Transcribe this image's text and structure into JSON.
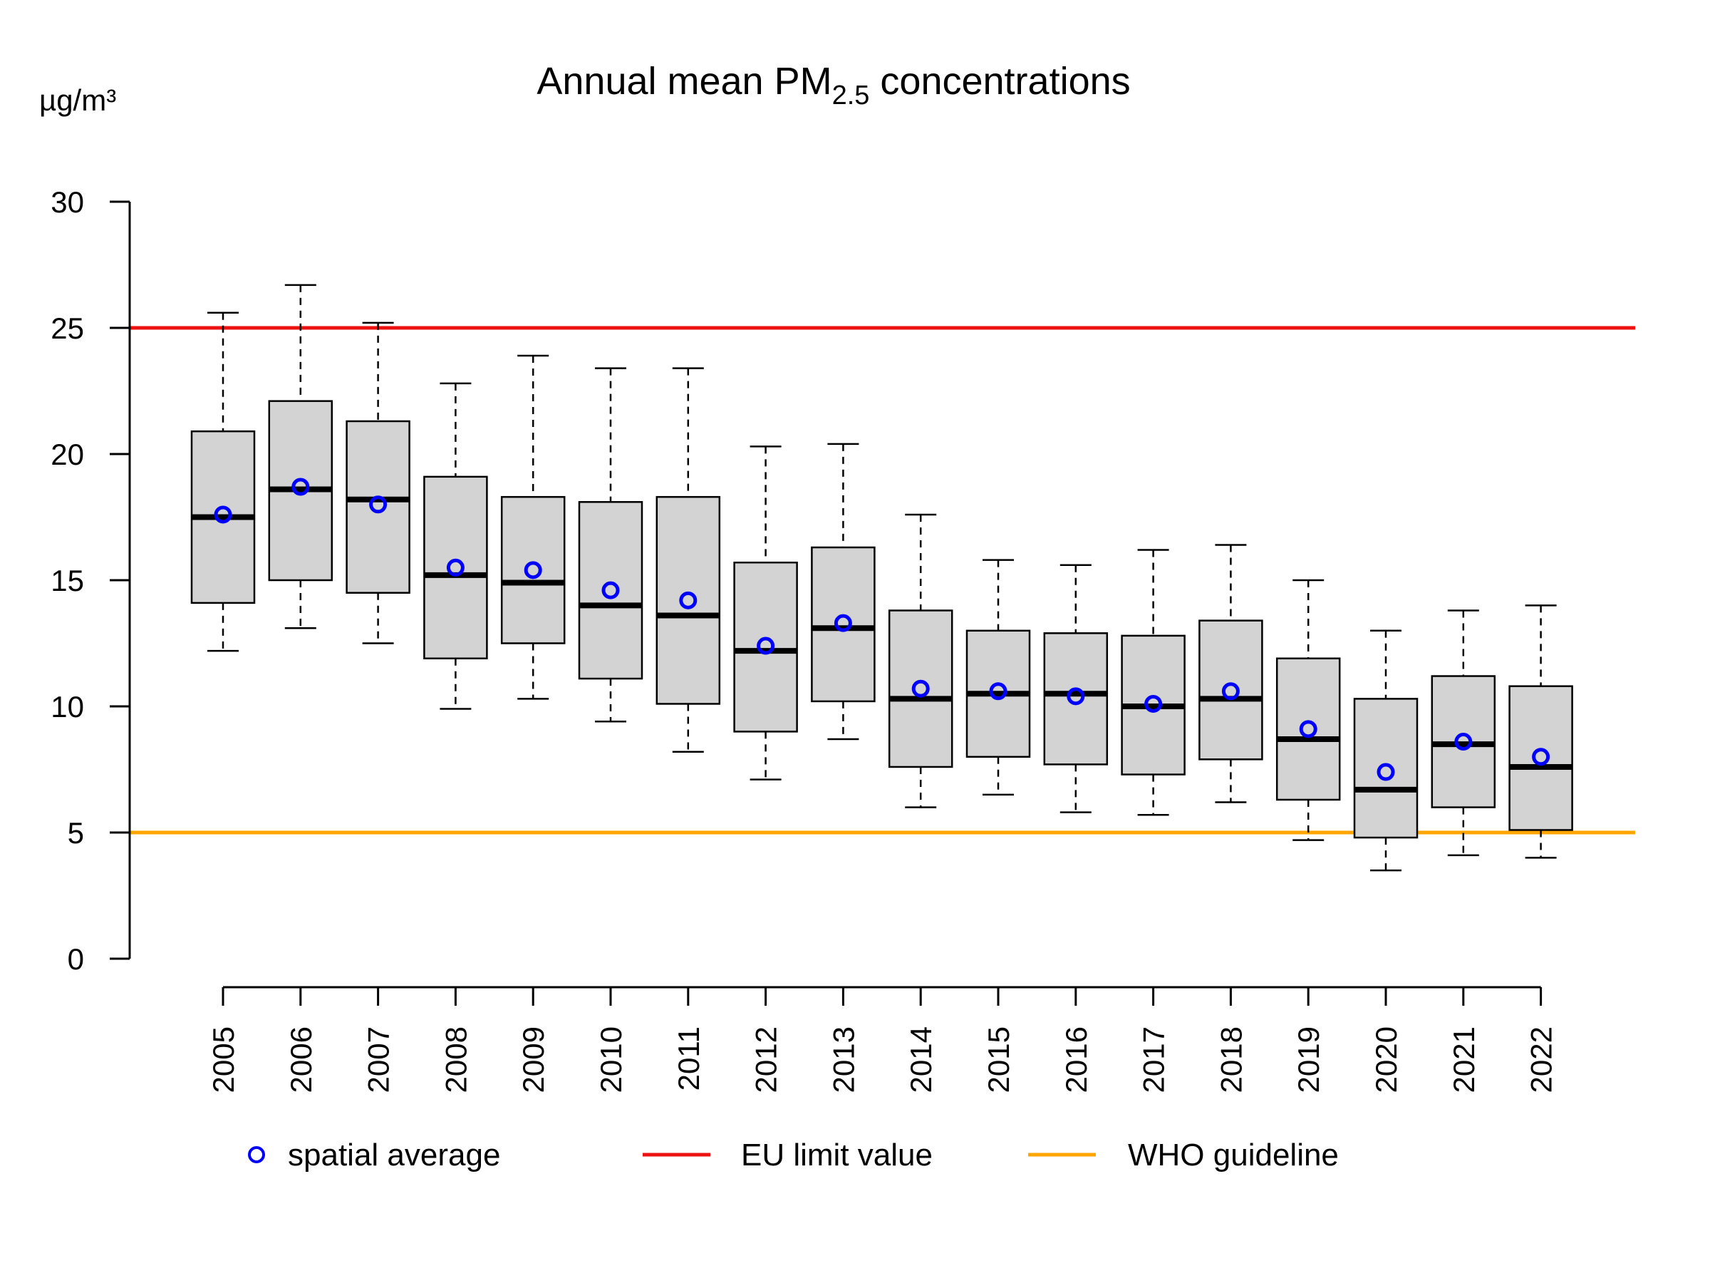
{
  "chart_data": {
    "type": "box",
    "title_main": "Annual mean PM",
    "title_sub": "2.5",
    "title_rest": " concentrations",
    "unit_label": "µg/m³",
    "ylim": [
      0,
      30
    ],
    "yticks": [
      0,
      5,
      10,
      15,
      20,
      25,
      30
    ],
    "categories": [
      "2005",
      "2006",
      "2007",
      "2008",
      "2009",
      "2010",
      "2011",
      "2012",
      "2013",
      "2014",
      "2015",
      "2016",
      "2017",
      "2018",
      "2019",
      "2020",
      "2021",
      "2022"
    ],
    "boxes": [
      {
        "lo": 12.2,
        "q1": 14.1,
        "median": 17.5,
        "q3": 20.9,
        "hi": 25.6,
        "mean": 17.6
      },
      {
        "lo": 13.1,
        "q1": 15.0,
        "median": 18.6,
        "q3": 22.1,
        "hi": 26.7,
        "mean": 18.7
      },
      {
        "lo": 12.5,
        "q1": 14.5,
        "median": 18.2,
        "q3": 21.3,
        "hi": 25.2,
        "mean": 18.0
      },
      {
        "lo": 9.9,
        "q1": 11.9,
        "median": 15.2,
        "q3": 19.1,
        "hi": 22.8,
        "mean": 15.5
      },
      {
        "lo": 10.3,
        "q1": 12.5,
        "median": 14.9,
        "q3": 18.3,
        "hi": 23.9,
        "mean": 15.4
      },
      {
        "lo": 9.4,
        "q1": 11.1,
        "median": 14.0,
        "q3": 18.1,
        "hi": 23.4,
        "mean": 14.6
      },
      {
        "lo": 8.2,
        "q1": 10.1,
        "median": 13.6,
        "q3": 18.3,
        "hi": 23.4,
        "mean": 14.2
      },
      {
        "lo": 7.1,
        "q1": 9.0,
        "median": 12.2,
        "q3": 15.7,
        "hi": 20.3,
        "mean": 12.4
      },
      {
        "lo": 8.7,
        "q1": 10.2,
        "median": 13.1,
        "q3": 16.3,
        "hi": 20.4,
        "mean": 13.3
      },
      {
        "lo": 6.0,
        "q1": 7.6,
        "median": 10.3,
        "q3": 13.8,
        "hi": 17.6,
        "mean": 10.7
      },
      {
        "lo": 6.5,
        "q1": 8.0,
        "median": 10.5,
        "q3": 13.0,
        "hi": 15.8,
        "mean": 10.6
      },
      {
        "lo": 5.8,
        "q1": 7.7,
        "median": 10.5,
        "q3": 12.9,
        "hi": 15.6,
        "mean": 10.4
      },
      {
        "lo": 5.7,
        "q1": 7.3,
        "median": 10.0,
        "q3": 12.8,
        "hi": 16.2,
        "mean": 10.1
      },
      {
        "lo": 6.2,
        "q1": 7.9,
        "median": 10.3,
        "q3": 13.4,
        "hi": 16.4,
        "mean": 10.6
      },
      {
        "lo": 4.7,
        "q1": 6.3,
        "median": 8.7,
        "q3": 11.9,
        "hi": 15.0,
        "mean": 9.1
      },
      {
        "lo": 3.5,
        "q1": 4.8,
        "median": 6.7,
        "q3": 10.3,
        "hi": 13.0,
        "mean": 7.4
      },
      {
        "lo": 4.1,
        "q1": 6.0,
        "median": 8.5,
        "q3": 11.2,
        "hi": 13.8,
        "mean": 8.6
      },
      {
        "lo": 4.0,
        "q1": 5.1,
        "median": 7.6,
        "q3": 10.8,
        "hi": 14.0,
        "mean": 8.0
      }
    ],
    "reference_lines": [
      {
        "name": "EU limit value",
        "value": 25,
        "color": "#ee1111"
      },
      {
        "name": "WHO guideline",
        "value": 5,
        "color": "#ffa500"
      }
    ],
    "legend": {
      "placement": "bottom",
      "entries": [
        "spatial average",
        "EU limit value",
        "WHO guideline"
      ]
    },
    "colors": {
      "box_fill": "#d3d3d3",
      "mean_marker": "#0000ff",
      "eu_line": "#ee1111",
      "who_line": "#ffa500"
    },
    "grid": false
  }
}
